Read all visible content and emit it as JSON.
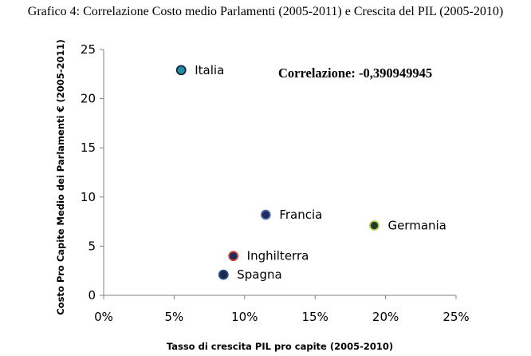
{
  "chart_data": {
    "type": "scatter",
    "title": "Grafico 4: Correlazione Costo medio Parlamenti (2005-2011) e Crescita del PIL (2005-2010)",
    "xlabel": "Tasso di crescita PIL pro capite (2005-2010)",
    "ylabel": "Costo Pro Capite Medio dei Parlamenti € (2005-2011)",
    "xlim": [
      0,
      0.25
    ],
    "ylim": [
      0,
      25
    ],
    "x_ticks": [
      {
        "value": 0,
        "label": "0%"
      },
      {
        "value": 0.05,
        "label": "5%"
      },
      {
        "value": 0.1,
        "label": "10%"
      },
      {
        "value": 0.15,
        "label": "15%"
      },
      {
        "value": 0.2,
        "label": "20%"
      },
      {
        "value": 0.25,
        "label": "25%"
      }
    ],
    "y_ticks": [
      {
        "value": 0,
        "label": "0"
      },
      {
        "value": 5,
        "label": "5"
      },
      {
        "value": 10,
        "label": "10"
      },
      {
        "value": 15,
        "label": "15"
      },
      {
        "value": 20,
        "label": "20"
      },
      {
        "value": 25,
        "label": "25"
      }
    ],
    "grid": false,
    "annotation": "Correlazione: -0,390949945",
    "points": [
      {
        "label": "Italia",
        "x": 0.055,
        "y": 22.9,
        "fill": "#1f8fa8",
        "stroke": "#17223b"
      },
      {
        "label": "Francia",
        "x": 0.115,
        "y": 8.2,
        "fill": "#1c2d5a",
        "stroke": "#5b6fb8"
      },
      {
        "label": "Germania",
        "x": 0.192,
        "y": 7.1,
        "fill": "#1e3b2e",
        "stroke": "#b9c74a"
      },
      {
        "label": "Inghilterra",
        "x": 0.092,
        "y": 4.0,
        "fill": "#1c2d5a",
        "stroke": "#d2463c"
      },
      {
        "label": "Spagna",
        "x": 0.085,
        "y": 2.1,
        "fill": "#152a4a",
        "stroke": "#2a4a8a"
      }
    ]
  }
}
